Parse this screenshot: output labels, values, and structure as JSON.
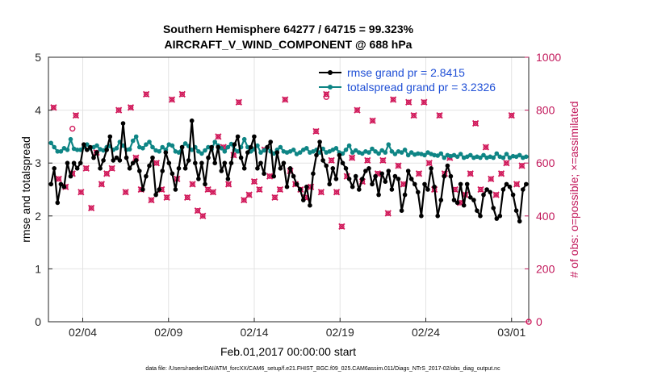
{
  "chart_data": {
    "type": "line",
    "title": "Southern Hemisphere 64277 / 64715 = 99.323%",
    "subtitle": "AIRCRAFT_V_WIND_COMPONENT @ 688 hPa",
    "xlabel": "Feb.01,2017 00:00:00 start",
    "ylabel": "rmse and totalspread",
    "ylabel_right": "# of obs: o=possible; ×=assimilated",
    "footer": "data file: /Users/raeder/DAI/ATM_forcXX/CAM6_setup/f.e21.FHIST_BGC.f09_025.CAM6assim.011/Diags_NTrS_2017-02/obs_diag_output.nc",
    "xlim": [
      1,
      29
    ],
    "ylim": [
      0,
      5
    ],
    "ylim_right": [
      0,
      1000
    ],
    "x_ticks": [
      3,
      8,
      13,
      18,
      23,
      28
    ],
    "x_ticklabels": [
      "02/04",
      "02/09",
      "02/14",
      "02/19",
      "02/24",
      "03/01"
    ],
    "y_ticks": [
      0,
      1,
      2,
      3,
      4,
      5
    ],
    "y_ticklabels": [
      "0",
      "1",
      "2",
      "3",
      "4",
      "5"
    ],
    "y_ticks_right": [
      0,
      200,
      400,
      600,
      800,
      1000
    ],
    "y_ticklabels_right": [
      "0",
      "200",
      "400",
      "600",
      "800",
      "1000"
    ],
    "grid": true,
    "colors": {
      "rmse": "#000000",
      "spread": "#0e8585",
      "obs": "#d11a5b",
      "legend_text": "#1f4fd6",
      "right_axis": "#c2185b"
    },
    "series": [
      {
        "name": "rmse grand pr = 2.8415",
        "values": [
          2.6,
          2.9,
          2.25,
          2.6,
          2.55,
          3.0,
          2.75,
          3.0,
          2.9,
          3.0,
          3.35,
          3.25,
          3.3,
          3.1,
          3.2,
          2.9,
          3.05,
          3.25,
          3.5,
          3.05,
          3.1,
          3.05,
          3.75,
          3.1,
          2.9,
          3.0,
          3.05,
          2.85,
          2.5,
          2.75,
          2.95,
          3.1,
          2.4,
          2.5,
          2.85,
          3.2,
          3.0,
          2.8,
          2.5,
          2.9,
          3.3,
          2.9,
          3.05,
          3.8,
          3.0,
          2.7,
          3.0,
          2.6,
          3.1,
          3.3,
          3.0,
          3.3,
          2.85,
          3.0,
          2.7,
          3.0,
          3.35,
          3.5,
          3.1,
          2.9,
          3.2,
          3.3,
          3.5,
          2.9,
          3.0,
          2.8,
          3.3,
          3.4,
          2.75,
          3.2,
          2.9,
          3.0,
          2.55,
          2.9,
          2.75,
          2.6,
          2.5,
          2.3,
          2.55,
          2.2,
          2.8,
          3.15,
          3.4,
          3.05,
          2.95,
          2.6,
          2.9,
          2.7,
          3.15,
          3.0,
          2.9,
          2.7,
          2.55,
          2.75,
          2.5,
          2.7,
          2.85,
          2.9,
          2.6,
          2.75,
          2.4,
          2.8,
          2.65,
          2.85,
          2.5,
          2.75,
          2.7,
          2.1,
          2.4,
          2.85,
          2.7,
          2.6,
          2.45,
          2.0,
          2.6,
          2.5,
          2.9,
          2.55,
          2.0,
          2.3,
          2.75,
          2.95,
          2.75,
          2.3,
          2.25,
          2.6,
          2.2,
          2.6,
          2.35,
          2.3,
          2.1,
          2.0,
          2.4,
          2.5,
          2.45,
          2.15,
          1.95,
          2.0,
          2.5,
          2.6,
          2.55,
          2.4,
          2.1,
          1.9,
          2.5,
          2.6
        ]
      },
      {
        "name": "totalspread grand pr = 3.2326",
        "values": [
          3.38,
          3.3,
          3.22,
          3.22,
          3.28,
          3.25,
          3.45,
          3.27,
          3.25,
          3.25,
          3.3,
          3.35,
          3.28,
          3.3,
          3.33,
          3.26,
          3.24,
          3.3,
          3.32,
          3.25,
          3.28,
          3.4,
          3.33,
          3.25,
          3.26,
          3.42,
          3.5,
          3.3,
          3.28,
          3.35,
          3.4,
          3.3,
          3.24,
          3.22,
          3.3,
          3.25,
          3.35,
          3.33,
          3.22,
          3.2,
          3.3,
          3.37,
          3.32,
          3.25,
          3.3,
          3.22,
          3.18,
          3.24,
          3.3,
          3.26,
          3.4,
          3.33,
          3.28,
          3.22,
          3.3,
          3.36,
          3.25,
          3.22,
          3.3,
          3.45,
          3.3,
          3.22,
          3.26,
          3.33,
          3.2,
          3.24,
          3.3,
          3.22,
          3.18,
          3.25,
          3.3,
          3.22,
          3.2,
          3.22,
          3.25,
          3.17,
          3.2,
          3.25,
          3.28,
          3.2,
          3.22,
          3.25,
          3.2,
          3.27,
          3.2,
          3.22,
          3.25,
          3.28,
          3.2,
          3.18,
          3.25,
          3.33,
          3.2,
          3.24,
          3.2,
          3.18,
          3.22,
          3.2,
          3.27,
          3.22,
          3.18,
          3.24,
          3.2,
          3.35,
          3.22,
          3.17,
          3.22,
          3.2,
          3.25,
          3.15,
          3.2,
          3.16,
          3.18,
          3.17,
          3.15,
          3.2,
          3.17,
          3.15,
          3.14,
          3.18,
          3.1,
          3.15,
          3.13,
          3.15,
          3.12,
          3.17,
          3.1,
          3.12,
          3.15,
          3.1,
          3.12,
          3.1,
          3.15,
          3.1,
          3.12,
          3.1,
          3.18,
          3.12,
          3.1,
          3.17,
          3.1,
          3.13,
          3.12,
          3.15,
          3.1,
          3.12
        ]
      }
    ],
    "obs_assimilated": [
      {
        "x": 1.3,
        "y": 810
      },
      {
        "x": 1.6,
        "y": 540
      },
      {
        "x": 2.0,
        "y": 510
      },
      {
        "x": 2.4,
        "y": 560
      },
      {
        "x": 2.6,
        "y": 780
      },
      {
        "x": 2.9,
        "y": 490
      },
      {
        "x": 3.2,
        "y": 580
      },
      {
        "x": 3.5,
        "y": 430
      },
      {
        "x": 3.8,
        "y": 640
      },
      {
        "x": 4.1,
        "y": 520
      },
      {
        "x": 4.4,
        "y": 560
      },
      {
        "x": 4.7,
        "y": 580
      },
      {
        "x": 5.1,
        "y": 800
      },
      {
        "x": 5.5,
        "y": 490
      },
      {
        "x": 5.8,
        "y": 810
      },
      {
        "x": 6.1,
        "y": 620
      },
      {
        "x": 6.4,
        "y": 500
      },
      {
        "x": 6.7,
        "y": 860
      },
      {
        "x": 7.0,
        "y": 460
      },
      {
        "x": 7.3,
        "y": 600
      },
      {
        "x": 7.6,
        "y": 500
      },
      {
        "x": 7.9,
        "y": 470
      },
      {
        "x": 8.2,
        "y": 840
      },
      {
        "x": 8.5,
        "y": 540
      },
      {
        "x": 8.8,
        "y": 860
      },
      {
        "x": 9.1,
        "y": 470
      },
      {
        "x": 9.4,
        "y": 520
      },
      {
        "x": 9.7,
        "y": 420
      },
      {
        "x": 10.0,
        "y": 400
      },
      {
        "x": 10.3,
        "y": 500
      },
      {
        "x": 10.6,
        "y": 490
      },
      {
        "x": 10.9,
        "y": 700
      },
      {
        "x": 11.2,
        "y": 660
      },
      {
        "x": 11.5,
        "y": 520
      },
      {
        "x": 11.8,
        "y": 630
      },
      {
        "x": 12.1,
        "y": 830
      },
      {
        "x": 12.4,
        "y": 460
      },
      {
        "x": 12.7,
        "y": 480
      },
      {
        "x": 13.0,
        "y": 530
      },
      {
        "x": 13.3,
        "y": 500
      },
      {
        "x": 13.6,
        "y": 650
      },
      {
        "x": 13.9,
        "y": 550
      },
      {
        "x": 14.2,
        "y": 470
      },
      {
        "x": 14.5,
        "y": 500
      },
      {
        "x": 14.8,
        "y": 840
      },
      {
        "x": 15.1,
        "y": 570
      },
      {
        "x": 15.4,
        "y": 520
      },
      {
        "x": 15.7,
        "y": 500
      },
      {
        "x": 16.0,
        "y": 470
      },
      {
        "x": 16.3,
        "y": 510
      },
      {
        "x": 16.6,
        "y": 720
      },
      {
        "x": 16.9,
        "y": 490
      },
      {
        "x": 17.2,
        "y": 860
      },
      {
        "x": 17.5,
        "y": 610
      },
      {
        "x": 17.8,
        "y": 490
      },
      {
        "x": 18.1,
        "y": 360
      },
      {
        "x": 18.4,
        "y": 550
      },
      {
        "x": 18.7,
        "y": 620
      },
      {
        "x": 19.0,
        "y": 800
      },
      {
        "x": 19.3,
        "y": 530
      },
      {
        "x": 19.6,
        "y": 610
      },
      {
        "x": 19.9,
        "y": 760
      },
      {
        "x": 20.2,
        "y": 560
      },
      {
        "x": 20.5,
        "y": 610
      },
      {
        "x": 20.8,
        "y": 410
      },
      {
        "x": 21.1,
        "y": 840
      },
      {
        "x": 21.4,
        "y": 590
      },
      {
        "x": 21.7,
        "y": 520
      },
      {
        "x": 22.0,
        "y": 830
      },
      {
        "x": 22.3,
        "y": 780
      },
      {
        "x": 22.6,
        "y": 560
      },
      {
        "x": 22.9,
        "y": 830
      },
      {
        "x": 23.2,
        "y": 600
      },
      {
        "x": 23.5,
        "y": 500
      },
      {
        "x": 23.8,
        "y": 780
      },
      {
        "x": 24.1,
        "y": 560
      },
      {
        "x": 24.4,
        "y": 620
      },
      {
        "x": 24.7,
        "y": 500
      },
      {
        "x": 25.0,
        "y": 450
      },
      {
        "x": 25.3,
        "y": 480
      },
      {
        "x": 25.6,
        "y": 560
      },
      {
        "x": 25.9,
        "y": 750
      },
      {
        "x": 26.2,
        "y": 500
      },
      {
        "x": 26.5,
        "y": 660
      },
      {
        "x": 26.8,
        "y": 540
      },
      {
        "x": 27.1,
        "y": 480
      },
      {
        "x": 27.4,
        "y": 560
      },
      {
        "x": 27.7,
        "y": 600
      },
      {
        "x": 28.0,
        "y": 780
      },
      {
        "x": 28.3,
        "y": 520
      },
      {
        "x": 28.6,
        "y": 590
      }
    ],
    "obs_possible_only": [
      {
        "x": 2.4,
        "y": 730
      },
      {
        "x": 17.2,
        "y": 850
      },
      {
        "x": 29.0,
        "y": 0
      }
    ]
  }
}
